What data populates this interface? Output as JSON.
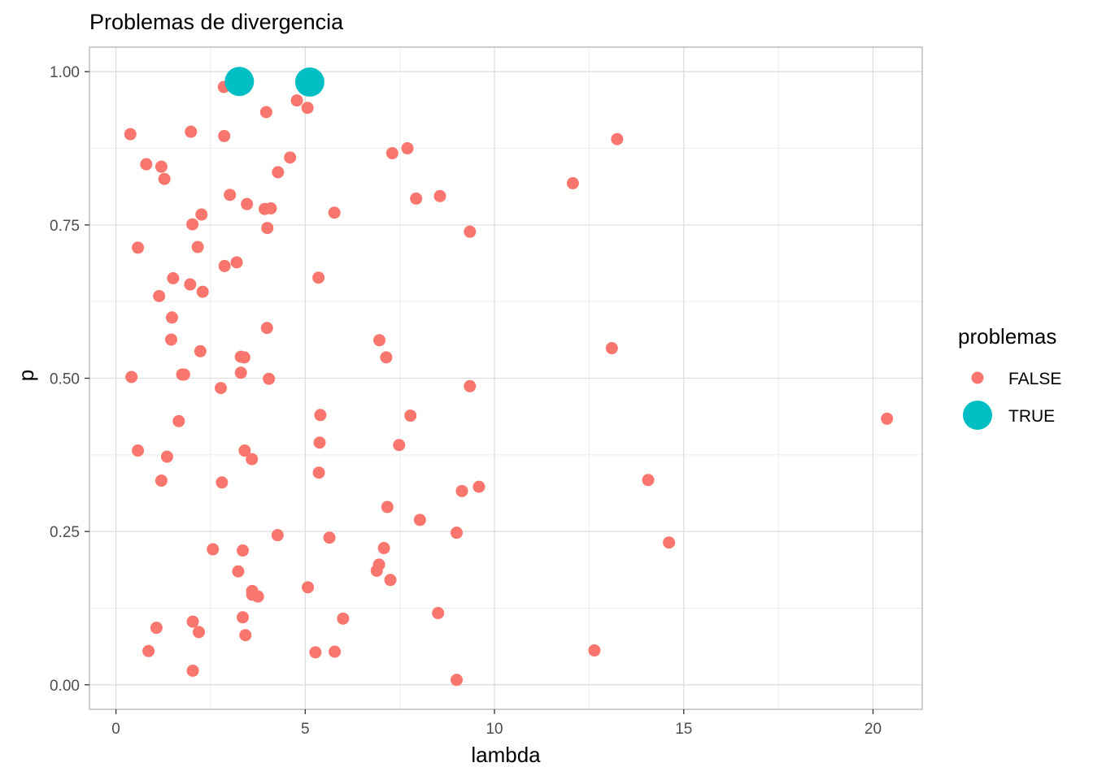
{
  "chart_data": {
    "type": "scatter",
    "title": "Problemas de divergencia",
    "xlabel": "lambda",
    "ylabel": "p",
    "xlim": [
      -0.7,
      21.3
    ],
    "ylim": [
      -0.04,
      1.04
    ],
    "x_ticks": [
      {
        "value": 0,
        "label": "0"
      },
      {
        "value": 5,
        "label": "5"
      },
      {
        "value": 10,
        "label": "10"
      },
      {
        "value": 15,
        "label": "15"
      },
      {
        "value": 20,
        "label": "20"
      }
    ],
    "y_ticks": [
      {
        "value": 0,
        "label": "0.00"
      },
      {
        "value": 0.25,
        "label": "0.25"
      },
      {
        "value": 0.5,
        "label": "0.50"
      },
      {
        "value": 0.75,
        "label": "0.75"
      },
      {
        "value": 1,
        "label": "1.00"
      }
    ],
    "grid": true,
    "legend": {
      "title": "problemas",
      "position": "right",
      "entries": [
        {
          "label": "FALSE",
          "color": "#F8766D"
        },
        {
          "label": "TRUE",
          "color": "#00BFC4"
        }
      ]
    },
    "series": [
      {
        "name": "FALSE",
        "color": "#F8766D",
        "points": [
          [
            2.85,
            0.975
          ],
          [
            4.78,
            0.953
          ],
          [
            5.06,
            0.941
          ],
          [
            3.97,
            0.934
          ],
          [
            0.38,
            0.898
          ],
          [
            1.98,
            0.902
          ],
          [
            2.86,
            0.895
          ],
          [
            13.24,
            0.89
          ],
          [
            7.3,
            0.867
          ],
          [
            7.7,
            0.875
          ],
          [
            4.6,
            0.86
          ],
          [
            0.8,
            0.849
          ],
          [
            1.2,
            0.845
          ],
          [
            1.28,
            0.825
          ],
          [
            4.28,
            0.836
          ],
          [
            12.07,
            0.818
          ],
          [
            3.01,
            0.799
          ],
          [
            7.93,
            0.793
          ],
          [
            8.56,
            0.797
          ],
          [
            3.46,
            0.784
          ],
          [
            3.93,
            0.776
          ],
          [
            4.09,
            0.777
          ],
          [
            5.77,
            0.77
          ],
          [
            2.26,
            0.767
          ],
          [
            2.02,
            0.751
          ],
          [
            4.0,
            0.745
          ],
          [
            9.35,
            0.739
          ],
          [
            0.58,
            0.713
          ],
          [
            2.16,
            0.714
          ],
          [
            3.19,
            0.689
          ],
          [
            2.87,
            0.683
          ],
          [
            5.35,
            0.664
          ],
          [
            1.51,
            0.663
          ],
          [
            1.96,
            0.653
          ],
          [
            2.29,
            0.641
          ],
          [
            1.14,
            0.634
          ],
          [
            1.48,
            0.599
          ],
          [
            3.99,
            0.582
          ],
          [
            1.46,
            0.563
          ],
          [
            6.96,
            0.562
          ],
          [
            2.23,
            0.544
          ],
          [
            13.1,
            0.549
          ],
          [
            3.3,
            0.535
          ],
          [
            3.39,
            0.534
          ],
          [
            7.14,
            0.534
          ],
          [
            3.3,
            0.509
          ],
          [
            1.75,
            0.506
          ],
          [
            1.8,
            0.506
          ],
          [
            0.41,
            0.502
          ],
          [
            4.04,
            0.499
          ],
          [
            2.77,
            0.484
          ],
          [
            9.35,
            0.487
          ],
          [
            5.4,
            0.44
          ],
          [
            7.78,
            0.439
          ],
          [
            20.37,
            0.434
          ],
          [
            1.66,
            0.43
          ],
          [
            5.38,
            0.395
          ],
          [
            7.48,
            0.391
          ],
          [
            0.58,
            0.382
          ],
          [
            3.4,
            0.382
          ],
          [
            1.35,
            0.372
          ],
          [
            3.59,
            0.368
          ],
          [
            5.36,
            0.346
          ],
          [
            1.2,
            0.333
          ],
          [
            2.8,
            0.33
          ],
          [
            14.06,
            0.334
          ],
          [
            9.59,
            0.323
          ],
          [
            9.14,
            0.316
          ],
          [
            7.17,
            0.29
          ],
          [
            8.03,
            0.269
          ],
          [
            9.0,
            0.248
          ],
          [
            4.27,
            0.244
          ],
          [
            5.64,
            0.24
          ],
          [
            14.61,
            0.232
          ],
          [
            2.56,
            0.221
          ],
          [
            3.35,
            0.219
          ],
          [
            7.08,
            0.223
          ],
          [
            6.95,
            0.196
          ],
          [
            3.23,
            0.185
          ],
          [
            6.89,
            0.186
          ],
          [
            7.25,
            0.171
          ],
          [
            5.07,
            0.159
          ],
          [
            3.6,
            0.153
          ],
          [
            3.6,
            0.147
          ],
          [
            3.75,
            0.144
          ],
          [
            8.51,
            0.117
          ],
          [
            3.35,
            0.11
          ],
          [
            6.0,
            0.108
          ],
          [
            2.03,
            0.103
          ],
          [
            1.07,
            0.093
          ],
          [
            2.19,
            0.086
          ],
          [
            3.42,
            0.081
          ],
          [
            0.86,
            0.055
          ],
          [
            5.27,
            0.053
          ],
          [
            5.78,
            0.054
          ],
          [
            12.64,
            0.056
          ],
          [
            2.03,
            0.023
          ],
          [
            9.0,
            0.008
          ]
        ]
      },
      {
        "name": "TRUE",
        "color": "#00BFC4",
        "points": [
          [
            3.26,
            0.984
          ],
          [
            5.12,
            0.983
          ]
        ]
      }
    ]
  }
}
